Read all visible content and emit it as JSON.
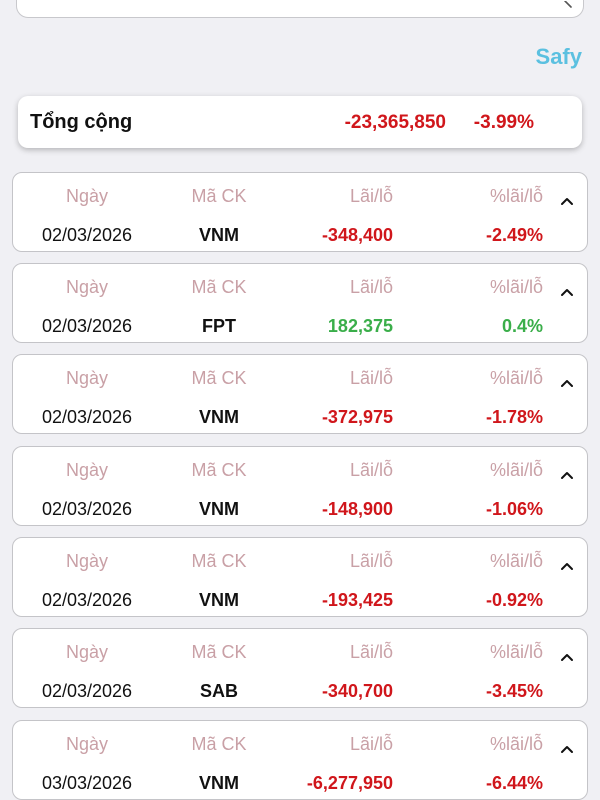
{
  "header": {
    "brand": "Safy"
  },
  "summary": {
    "label": "Tổng cộng",
    "value": "-23,365,850",
    "percent": "-3.99%"
  },
  "columns": {
    "date": "Ngày",
    "ticker": "Mã CK",
    "pnl": "Lãi/lỗ",
    "pnl_percent": "%lãi/lỗ"
  },
  "rows": [
    {
      "date": "02/03/2026",
      "ticker": "VNM",
      "pnl": "-348,400",
      "pnl_percent": "-2.49%",
      "trend": "neg"
    },
    {
      "date": "02/03/2026",
      "ticker": "FPT",
      "pnl": "182,375",
      "pnl_percent": "0.4%",
      "trend": "pos"
    },
    {
      "date": "02/03/2026",
      "ticker": "VNM",
      "pnl": "-372,975",
      "pnl_percent": "-1.78%",
      "trend": "neg"
    },
    {
      "date": "02/03/2026",
      "ticker": "VNM",
      "pnl": "-148,900",
      "pnl_percent": "-1.06%",
      "trend": "neg"
    },
    {
      "date": "02/03/2026",
      "ticker": "VNM",
      "pnl": "-193,425",
      "pnl_percent": "-0.92%",
      "trend": "neg"
    },
    {
      "date": "02/03/2026",
      "ticker": "SAB",
      "pnl": "-340,700",
      "pnl_percent": "-3.45%",
      "trend": "neg"
    },
    {
      "date": "03/03/2026",
      "ticker": "VNM",
      "pnl": "-6,277,950",
      "pnl_percent": "-6.44%",
      "trend": "neg"
    }
  ],
  "colors": {
    "negative": "#d0161b",
    "positive": "#3aae4a",
    "brand": "#5bc0e0",
    "header_text": "#c9a0a6"
  },
  "icons": {
    "search": "search-icon",
    "toggle": "chevron-up-icon"
  }
}
